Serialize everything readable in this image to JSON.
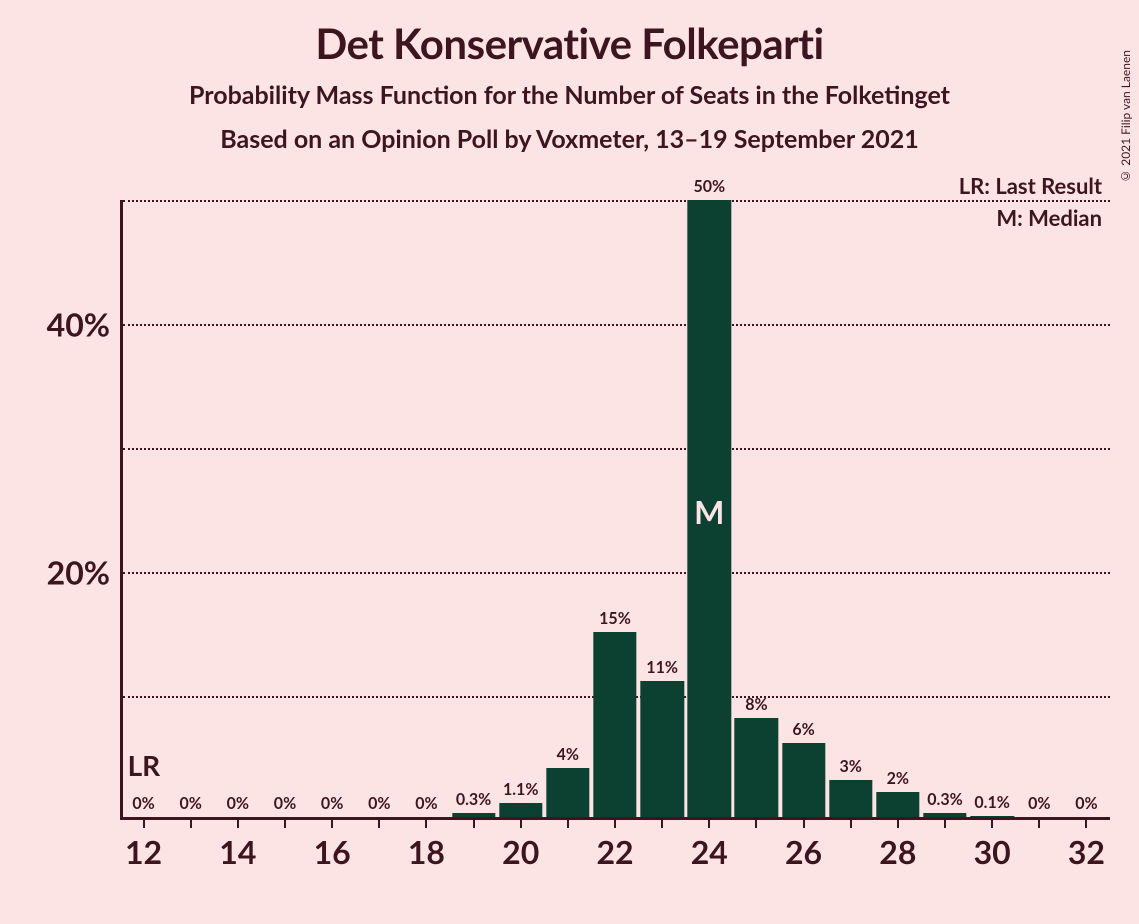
{
  "title": "Det Konservative Folkeparti",
  "subtitle1": "Probability Mass Function for the Number of Seats in the Folketinget",
  "subtitle2": "Based on an Opinion Poll by Voxmeter, 13–19 September 2021",
  "copyright": "© 2021 Filip van Laenen",
  "chart": {
    "type": "bar",
    "background_color": "#fde4e4",
    "bar_color": "#0c4132",
    "text_color": "#3d1520",
    "grid_color": "#3d1520",
    "median_text_color": "#fde4e4",
    "x_min": 11.5,
    "x_max": 32.5,
    "y_max": 50,
    "y_ticks": [
      10,
      20,
      30,
      40,
      50
    ],
    "y_tick_labels": [
      "",
      "20%",
      "",
      "40%",
      ""
    ],
    "x_tick_labels": [
      12,
      14,
      16,
      18,
      20,
      22,
      24,
      26,
      28,
      30,
      32
    ],
    "bar_width_ratio": 0.92,
    "bars": [
      {
        "x": 12,
        "value": 0,
        "label": "0%"
      },
      {
        "x": 13,
        "value": 0,
        "label": "0%"
      },
      {
        "x": 14,
        "value": 0,
        "label": "0%"
      },
      {
        "x": 15,
        "value": 0,
        "label": "0%"
      },
      {
        "x": 16,
        "value": 0,
        "label": "0%"
      },
      {
        "x": 17,
        "value": 0,
        "label": "0%"
      },
      {
        "x": 18,
        "value": 0,
        "label": "0%"
      },
      {
        "x": 19,
        "value": 0.3,
        "label": "0.3%"
      },
      {
        "x": 20,
        "value": 1.1,
        "label": "1.1%"
      },
      {
        "x": 21,
        "value": 4,
        "label": "4%"
      },
      {
        "x": 22,
        "value": 15,
        "label": "15%"
      },
      {
        "x": 23,
        "value": 11,
        "label": "11%"
      },
      {
        "x": 24,
        "value": 50,
        "label": "50%"
      },
      {
        "x": 25,
        "value": 8,
        "label": "8%"
      },
      {
        "x": 26,
        "value": 6,
        "label": "6%"
      },
      {
        "x": 27,
        "value": 3,
        "label": "3%"
      },
      {
        "x": 28,
        "value": 2,
        "label": "2%"
      },
      {
        "x": 29,
        "value": 0.3,
        "label": "0.3%"
      },
      {
        "x": 30,
        "value": 0.1,
        "label": "0.1%"
      },
      {
        "x": 31,
        "value": 0,
        "label": "0%"
      },
      {
        "x": 32,
        "value": 0,
        "label": "0%"
      }
    ],
    "legend": {
      "lr": "LR: Last Result",
      "m": "M: Median"
    },
    "lr_label": "LR",
    "lr_x": 12,
    "median_label": "M",
    "median_x": 24
  }
}
